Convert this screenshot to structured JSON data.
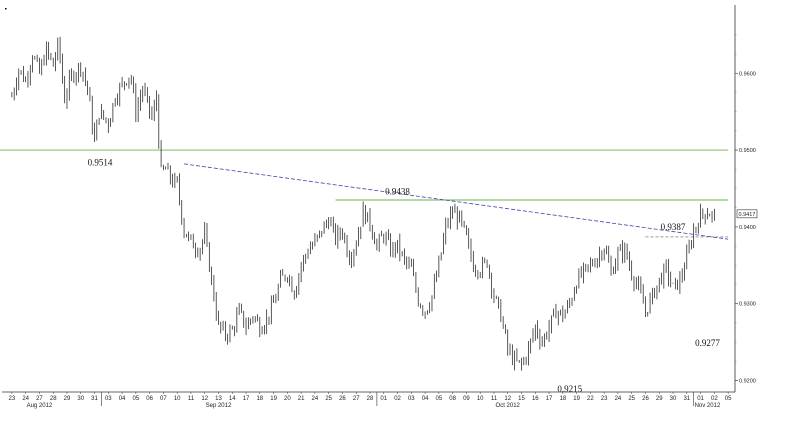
{
  "chart_data": {
    "type": "ohlc",
    "title": "",
    "xlabel": "",
    "ylabel": "",
    "grid": false,
    "legend": "none",
    "ylim": [
      0.9185,
      0.9685
    ],
    "y_ticks": [
      {
        "value": 0.96,
        "label": "0.9600"
      },
      {
        "value": 0.95,
        "label": "0.9500"
      },
      {
        "value": 0.94,
        "label": "0.9400"
      },
      {
        "value": 0.93,
        "label": "0.9300"
      },
      {
        "value": 0.92,
        "label": "0.9200"
      }
    ],
    "current_price": {
      "value": 0.9417,
      "label": "0.9417"
    },
    "x_day_labels": [
      "23",
      "24",
      "27",
      "28",
      "29",
      "30",
      "31",
      "03",
      "04",
      "05",
      "06",
      "07",
      "10",
      "11",
      "12",
      "13",
      "14",
      "17",
      "18",
      "19",
      "20",
      "21",
      "24",
      "25",
      "26",
      "27",
      "28",
      "01",
      "02",
      "03",
      "04",
      "05",
      "08",
      "09",
      "10",
      "11",
      "12",
      "15",
      "16",
      "17",
      "18",
      "19",
      "22",
      "23",
      "24",
      "25",
      "26",
      "29",
      "30",
      "31",
      "01",
      "02",
      "05"
    ],
    "x_month_labels": [
      {
        "label": "Aug 2012",
        "day_index": 2
      },
      {
        "label": "Sep 2012",
        "day_index": 15
      },
      {
        "label": "Oct 2012",
        "day_index": 36
      },
      {
        "label": "Nov 2012",
        "day_index": 50.5
      }
    ],
    "price_path": [
      [
        0,
        0.957
      ],
      [
        0.5,
        0.9605
      ],
      [
        1,
        0.959
      ],
      [
        1.5,
        0.9625
      ],
      [
        2,
        0.96
      ],
      [
        2.5,
        0.963
      ],
      [
        3,
        0.961
      ],
      [
        3.4,
        0.964
      ],
      [
        3.8,
        0.9565
      ],
      [
        4.3,
        0.9595
      ],
      [
        5,
        0.961
      ],
      [
        5.5,
        0.958
      ],
      [
        6.0,
        0.951
      ],
      [
        6.3,
        0.955
      ],
      [
        7,
        0.9535
      ],
      [
        7.5,
        0.957
      ],
      [
        8,
        0.9585
      ],
      [
        8.6,
        0.96
      ],
      [
        9,
        0.955
      ],
      [
        9.5,
        0.958
      ],
      [
        10.2,
        0.954
      ],
      [
        10.5,
        0.957
      ],
      [
        10.8,
        0.947
      ],
      [
        11.2,
        0.9475
      ],
      [
        11.6,
        0.946
      ],
      [
        12,
        0.9455
      ],
      [
        12.5,
        0.9395
      ],
      [
        13,
        0.938
      ],
      [
        13.6,
        0.937
      ],
      [
        14.0,
        0.939
      ],
      [
        14.5,
        0.933
      ],
      [
        15,
        0.927
      ],
      [
        15.5,
        0.926
      ],
      [
        16,
        0.9265
      ],
      [
        16.5,
        0.929
      ],
      [
        17,
        0.927
      ],
      [
        17.5,
        0.9285
      ],
      [
        18,
        0.927
      ],
      [
        18.5,
        0.928
      ],
      [
        19,
        0.93
      ],
      [
        19.5,
        0.933
      ],
      [
        20,
        0.934
      ],
      [
        20.5,
        0.9315
      ],
      [
        21,
        0.935
      ],
      [
        21.5,
        0.937
      ],
      [
        22,
        0.938
      ],
      [
        22.5,
        0.9395
      ],
      [
        23,
        0.941
      ],
      [
        23.5,
        0.9385
      ],
      [
        24,
        0.9395
      ],
      [
        24.5,
        0.936
      ],
      [
        25,
        0.938
      ],
      [
        25.5,
        0.942
      ],
      [
        26,
        0.9405
      ],
      [
        26.5,
        0.9375
      ],
      [
        27,
        0.939
      ],
      [
        27.5,
        0.937
      ],
      [
        28,
        0.9375
      ],
      [
        28.5,
        0.9355
      ],
      [
        29,
        0.9345
      ],
      [
        29.5,
        0.9305
      ],
      [
        30,
        0.929
      ],
      [
        30.5,
        0.931
      ],
      [
        31,
        0.935
      ],
      [
        31.5,
        0.94
      ],
      [
        32,
        0.942
      ],
      [
        32.5,
        0.941
      ],
      [
        33,
        0.9385
      ],
      [
        33.5,
        0.935
      ],
      [
        34,
        0.9345
      ],
      [
        34.5,
        0.9355
      ],
      [
        35,
        0.931
      ],
      [
        35.5,
        0.9285
      ],
      [
        36,
        0.924
      ],
      [
        36.5,
        0.9225
      ],
      [
        37,
        0.922
      ],
      [
        37.5,
        0.924
      ],
      [
        38,
        0.927
      ],
      [
        38.5,
        0.925
      ],
      [
        39,
        0.927
      ],
      [
        39.5,
        0.929
      ],
      [
        40,
        0.9285
      ],
      [
        40.5,
        0.93
      ],
      [
        41,
        0.933
      ],
      [
        41.5,
        0.934
      ],
      [
        42,
        0.935
      ],
      [
        42.5,
        0.936
      ],
      [
        43,
        0.9375
      ],
      [
        43.5,
        0.934
      ],
      [
        44,
        0.9365
      ],
      [
        44.5,
        0.937
      ],
      [
        45,
        0.934
      ],
      [
        45.5,
        0.932
      ],
      [
        46,
        0.929
      ],
      [
        46.5,
        0.931
      ],
      [
        47,
        0.933
      ],
      [
        47.5,
        0.9345
      ],
      [
        48,
        0.932
      ],
      [
        48.5,
        0.933
      ],
      [
        49,
        0.936
      ],
      [
        49.5,
        0.9395
      ],
      [
        50,
        0.9415
      ],
      [
        50.5,
        0.942
      ],
      [
        51,
        0.9412
      ]
    ],
    "horizontal_levels": [
      {
        "value": 0.95,
        "from_index": -1,
        "to_index": 52,
        "color": "#6ab04c"
      },
      {
        "value": 0.9435,
        "from_index": 23.5,
        "to_index": 52,
        "color": "#6ab04c"
      },
      {
        "value": 0.9387,
        "from_index": 46,
        "to_index": 52,
        "color": "#9a9a9a",
        "dashed": true
      }
    ],
    "trendline": {
      "from": [
        12.5,
        0.9482
      ],
      "to": [
        52,
        0.9384
      ],
      "color": "#3a44aa",
      "dashed": true
    },
    "annotations": [
      {
        "label": "0.9514",
        "day_index": 6.4,
        "value": 0.948
      },
      {
        "label": "0.9438",
        "day_index": 28.0,
        "value": 0.9442
      },
      {
        "label": "0.9387",
        "day_index": 48.0,
        "value": 0.9396
      },
      {
        "label": "0.9215",
        "day_index": 40.5,
        "value": 0.9185
      },
      {
        "label": "0.9277",
        "day_index": 50.5,
        "value": 0.9245
      }
    ]
  }
}
